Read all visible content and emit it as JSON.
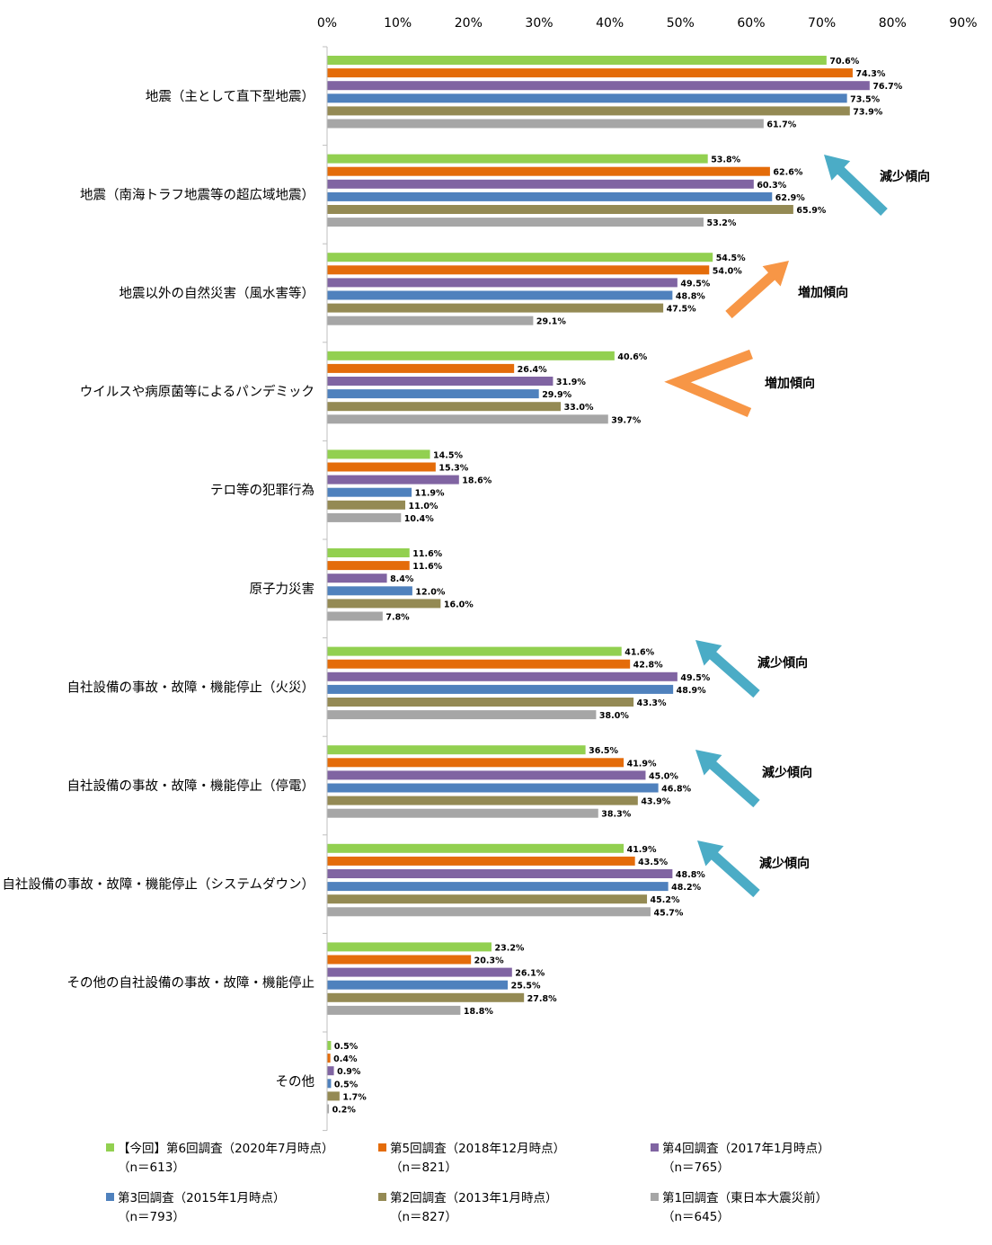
{
  "chart_data": {
    "type": "bar",
    "orientation": "horizontal",
    "xlim": [
      0,
      90
    ],
    "x_ticks": [
      "0%",
      "10%",
      "20%",
      "30%",
      "40%",
      "50%",
      "60%",
      "70%",
      "80%",
      "90%"
    ],
    "grid": false,
    "legend_position": "bottom",
    "categories": [
      "地震（主として直下型地震）",
      "地震（南海トラフ地震等の超広域地震）",
      "地震以外の自然災害（風水害等）",
      "ウイルスや病原菌等によるパンデミック",
      "テロ等の犯罪行為",
      "原子力災害",
      "自社設備の事故・故障・機能停止（火災）",
      "自社設備の事故・故障・機能停止（停電）",
      "自社設備の事故・故障・機能停止（システムダウン）",
      "その他の自社設備の事故・故障・機能停止",
      "その他"
    ],
    "series": [
      {
        "name": "【今回】第6回調査（2020年7月時点）",
        "n": "（n＝613）",
        "color": "#92d050",
        "values": [
          70.6,
          53.8,
          54.5,
          40.6,
          14.5,
          11.6,
          41.6,
          36.5,
          41.9,
          23.2,
          0.5
        ],
        "labels": [
          "70.6%",
          "53.8%",
          "54.5%",
          "40.6%",
          "14.5%",
          "11.6%",
          "41.6%",
          "36.5%",
          "41.9%",
          "23.2%",
          "0.5%"
        ]
      },
      {
        "name": "第5回調査（2018年12月時点）",
        "n": "（n＝821）",
        "color": "#e46c0a",
        "values": [
          74.3,
          62.6,
          54.0,
          26.4,
          15.3,
          11.6,
          42.8,
          41.9,
          43.5,
          20.3,
          0.4
        ],
        "labels": [
          "74.3%",
          "62.6%",
          "54.0%",
          "26.4%",
          "15.3%",
          "11.6%",
          "42.8%",
          "41.9%",
          "43.5%",
          "20.3%",
          "0.4%"
        ]
      },
      {
        "name": "第4回調査（2017年1月時点）",
        "n": "（n＝765）",
        "color": "#8064a2",
        "values": [
          76.7,
          60.3,
          49.5,
          31.9,
          18.6,
          8.4,
          49.5,
          45.0,
          48.8,
          26.1,
          0.9
        ],
        "labels": [
          "76.7%",
          "60.3%",
          "49.5%",
          "31.9%",
          "18.6%",
          "8.4%",
          "49.5%",
          "45.0%",
          "48.8%",
          "26.1%",
          "0.9%"
        ]
      },
      {
        "name": "第3回調査（2015年1月時点）",
        "n": "（n＝793）",
        "color": "#4f81bd",
        "values": [
          73.5,
          62.9,
          48.8,
          29.9,
          11.9,
          12.0,
          48.9,
          46.8,
          48.2,
          25.5,
          0.5
        ],
        "labels": [
          "73.5%",
          "62.9%",
          "48.8%",
          "29.9%",
          "11.9%",
          "12.0%",
          "48.9%",
          "46.8%",
          "48.2%",
          "25.5%",
          "0.5%"
        ]
      },
      {
        "name": "第2回調査（2013年1月時点）",
        "n": "（n＝827）",
        "color": "#948a54",
        "values": [
          73.9,
          65.9,
          47.5,
          33.0,
          11.0,
          16.0,
          43.3,
          43.9,
          45.2,
          27.8,
          1.7
        ],
        "labels": [
          "73.9%",
          "65.9%",
          "47.5%",
          "33.0%",
          "11.0%",
          "16.0%",
          "43.3%",
          "43.9%",
          "45.2%",
          "27.8%",
          "1.7%"
        ]
      },
      {
        "name": "第1回調査（東日本大震災前）",
        "n": "（n＝645）",
        "color": "#a6a6a6",
        "values": [
          61.7,
          53.2,
          29.1,
          39.7,
          10.4,
          7.8,
          38.0,
          38.3,
          45.7,
          18.8,
          0.2
        ],
        "labels": [
          "61.7%",
          "53.2%",
          "29.1%",
          "39.7%",
          "10.4%",
          "7.8%",
          "38.0%",
          "38.3%",
          "45.7%",
          "18.8%",
          "0.2%"
        ]
      }
    ],
    "annotations": [
      {
        "text": "減少傾向",
        "category_index": 1,
        "trend": "decrease",
        "color": "#4bacc6"
      },
      {
        "text": "増加傾向",
        "category_index": 2,
        "trend": "increase",
        "color": "#f79646"
      },
      {
        "text": "増加傾向",
        "category_index": 3,
        "trend": "increase",
        "color": "#f79646"
      },
      {
        "text": "減少傾向",
        "category_index": 6,
        "trend": "decrease",
        "color": "#4bacc6"
      },
      {
        "text": "減少傾向",
        "category_index": 7,
        "trend": "decrease",
        "color": "#4bacc6"
      },
      {
        "text": "減少傾向",
        "category_index": 8,
        "trend": "decrease",
        "color": "#4bacc6"
      }
    ]
  }
}
